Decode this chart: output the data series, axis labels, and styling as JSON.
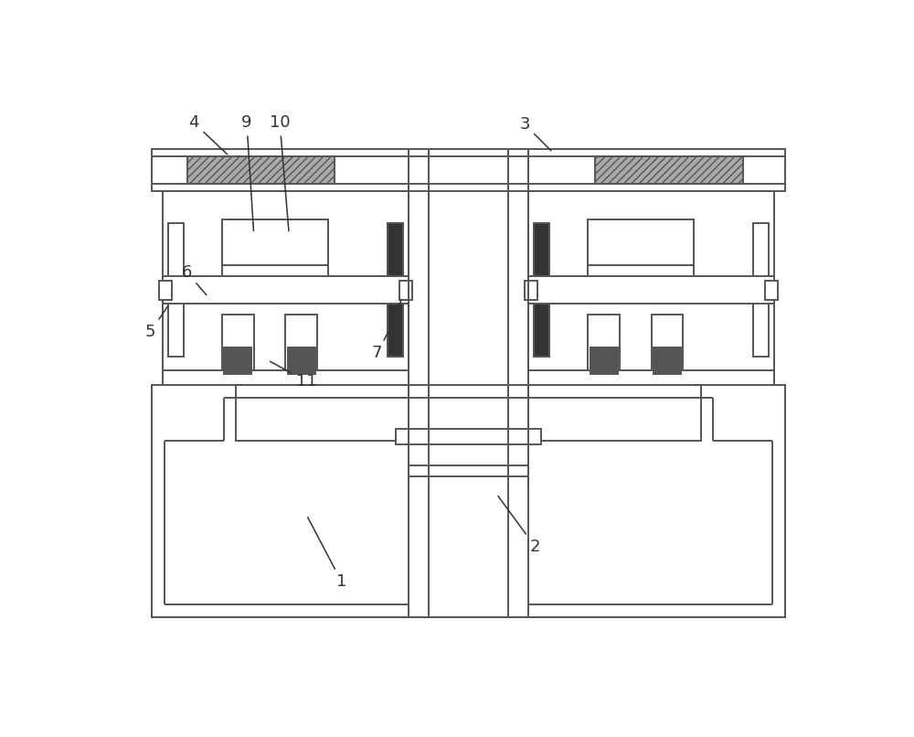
{
  "bg_color": "#ffffff",
  "lc": "#555555",
  "lw": 1.4,
  "label_fs": 13,
  "label_color": "#333333"
}
